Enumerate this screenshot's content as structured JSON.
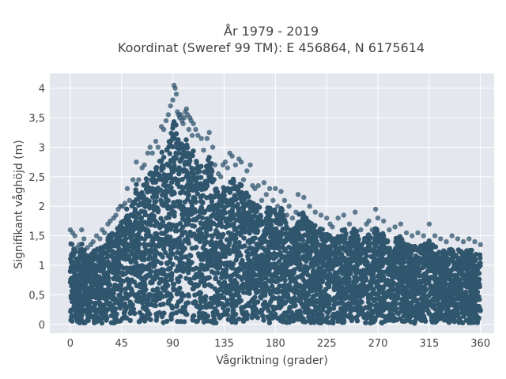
{
  "chart_data": {
    "type": "scatter",
    "title_lines": [
      "År 1979 - 2019",
      "Koordinat (Sweref 99 TM): E 456864, N 6175614"
    ],
    "xlabel": "Vågriktning (grader)",
    "ylabel": "Signifikant våghöjd (m)",
    "xlim": [
      -18,
      372
    ],
    "ylim": [
      -0.15,
      4.25
    ],
    "x_ticks": [
      0,
      45,
      90,
      135,
      180,
      225,
      270,
      315,
      360
    ],
    "x_tick_labels": [
      "0",
      "45",
      "90",
      "135",
      "180",
      "225",
      "270",
      "315",
      "360"
    ],
    "y_ticks": [
      0,
      0.5,
      1,
      1.5,
      2,
      2.5,
      3,
      3.5,
      4
    ],
    "y_tick_labels": [
      "0",
      "0,5",
      "1",
      "1,5",
      "2",
      "2,5",
      "3",
      "3,5",
      "4"
    ],
    "grid": true,
    "marker_color": "#30566e",
    "plot_bg": "#e5e7ef",
    "series": [
      {
        "x": [
          0,
          2,
          4,
          6,
          8,
          10,
          12,
          15,
          18,
          20,
          23,
          26,
          28,
          30,
          33,
          35,
          38,
          40,
          42,
          44,
          46,
          48,
          50,
          52,
          55,
          58,
          60,
          63,
          65,
          68,
          70,
          72,
          75,
          77,
          80,
          82,
          84,
          86,
          88,
          90,
          91,
          92,
          93,
          94,
          95,
          96,
          97,
          98,
          99,
          100,
          101,
          102,
          103,
          104,
          105,
          106,
          107,
          108,
          110,
          112,
          115,
          117,
          120,
          122,
          125,
          127,
          130,
          132,
          134,
          136,
          138,
          140,
          142,
          145,
          148,
          150,
          152,
          155,
          158,
          160,
          162,
          165,
          168,
          170,
          172,
          175,
          178,
          180,
          182,
          185,
          188,
          190,
          192,
          195,
          198,
          200,
          205,
          210,
          215,
          220,
          225,
          228,
          230,
          235,
          240,
          245,
          250,
          255,
          260,
          262,
          265,
          268,
          270,
          275,
          280,
          285,
          290,
          295,
          300,
          305,
          310,
          315,
          320,
          325,
          330,
          335,
          340,
          345,
          350,
          355,
          360
        ],
        "y": [
          1.6,
          1.55,
          1.5,
          1.3,
          1.35,
          1.6,
          1.45,
          1.3,
          1.35,
          1.4,
          1.5,
          1.45,
          1.6,
          1.55,
          1.7,
          1.75,
          1.8,
          1.85,
          1.95,
          2.0,
          2.0,
          2.05,
          2.3,
          2.1,
          2.45,
          2.75,
          2.45,
          2.65,
          2.7,
          2.9,
          3.0,
          2.9,
          3.1,
          3.0,
          3.35,
          3.3,
          3.45,
          3.55,
          3.7,
          3.8,
          4.05,
          4.0,
          3.9,
          3.6,
          3.55,
          3.5,
          3.55,
          3.45,
          3.4,
          3.5,
          3.6,
          3.65,
          3.55,
          3.3,
          3.5,
          3.45,
          3.2,
          3.4,
          3.3,
          3.2,
          3.15,
          2.95,
          3.15,
          3.25,
          3.0,
          2.7,
          2.55,
          2.5,
          2.7,
          2.75,
          2.65,
          2.9,
          2.85,
          2.7,
          2.8,
          2.75,
          2.45,
          2.6,
          2.7,
          2.35,
          2.3,
          2.35,
          2.1,
          2.4,
          2.2,
          2.3,
          2.1,
          2.3,
          2.0,
          2.25,
          2.1,
          1.85,
          2.0,
          1.8,
          1.9,
          2.2,
          2.15,
          2.0,
          1.9,
          1.85,
          1.8,
          1.7,
          1.65,
          1.8,
          1.85,
          1.7,
          1.9,
          1.6,
          1.7,
          1.75,
          1.6,
          1.95,
          1.8,
          1.75,
          1.6,
          1.65,
          1.7,
          1.55,
          1.5,
          1.55,
          1.5,
          1.7,
          1.5,
          1.45,
          1.4,
          1.5,
          1.45,
          1.4,
          1.45,
          1.4,
          1.35
        ]
      }
    ]
  }
}
